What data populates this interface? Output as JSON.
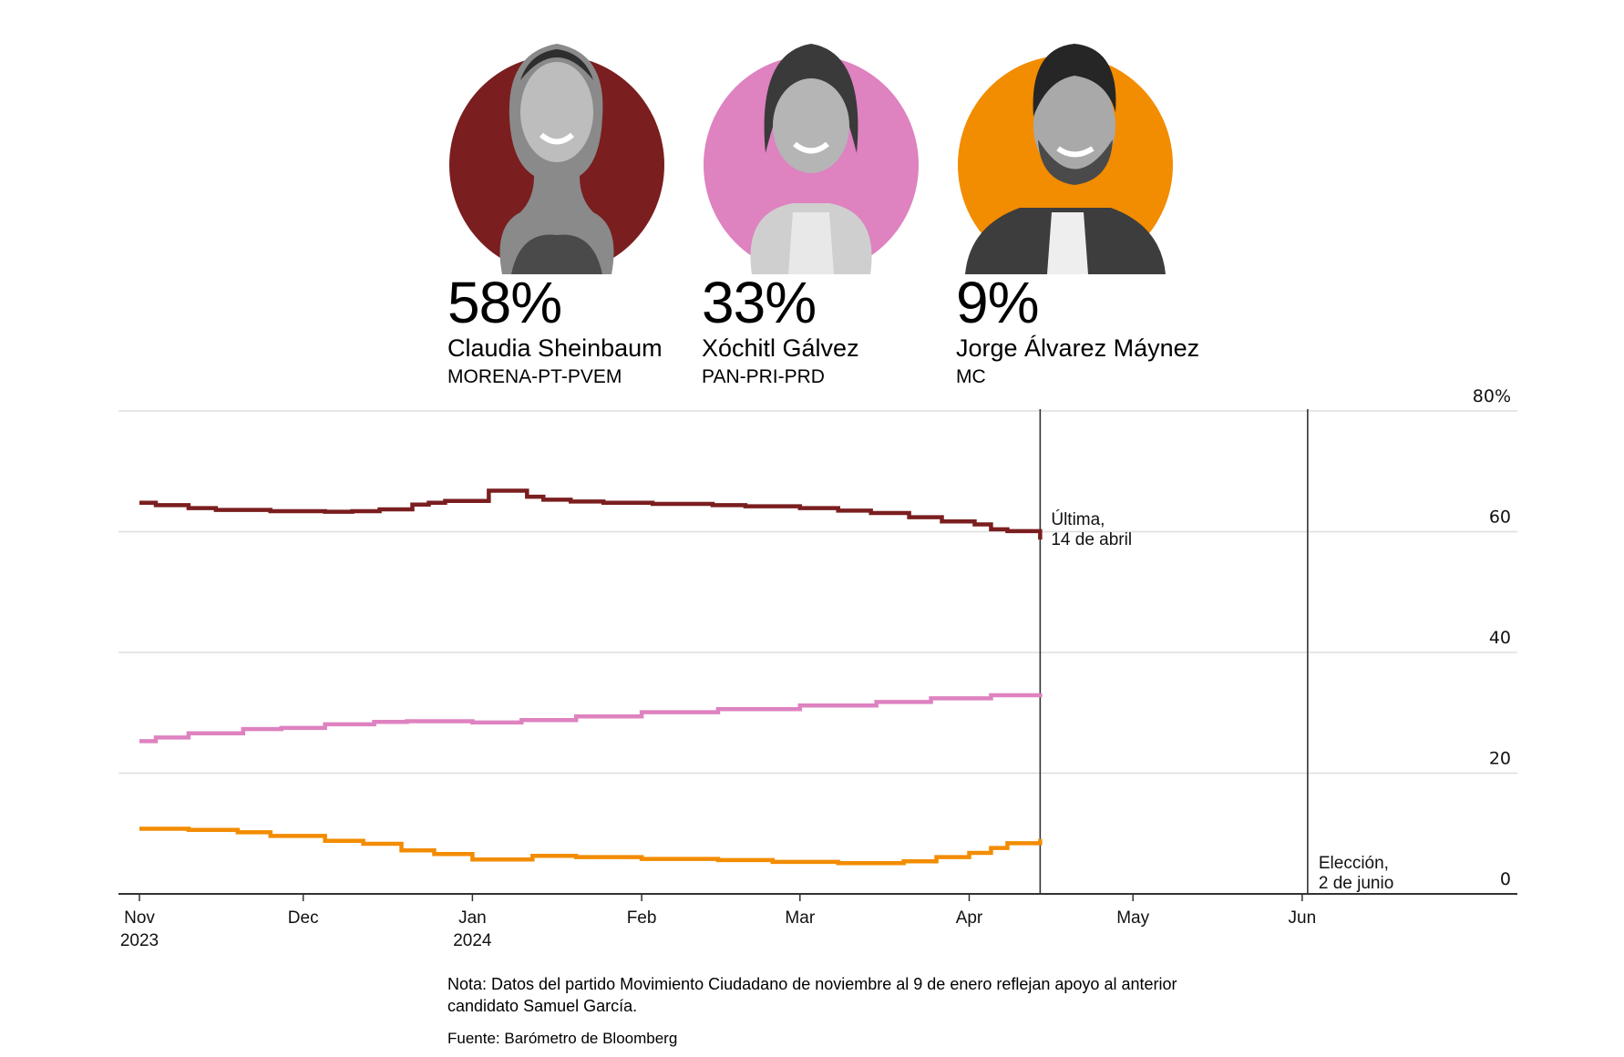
{
  "candidates": [
    {
      "id": "sheinbaum",
      "percent": "58%",
      "name": "Claudia Sheinbaum",
      "party": "MORENA-PT-PVEM",
      "color": "#7a1e1f",
      "photo_icon": "portrait-sheinbaum"
    },
    {
      "id": "galvez",
      "percent": "33%",
      "name": "Xóchitl Gálvez",
      "party": "PAN-PRI-PRD",
      "color": "#de82c0",
      "photo_icon": "portrait-galvez"
    },
    {
      "id": "maynez",
      "percent": "9%",
      "name": "Jorge Álvarez Máynez",
      "party": "MC",
      "color": "#f28c00",
      "photo_icon": "portrait-maynez"
    }
  ],
  "chart_data": {
    "type": "line",
    "title": "",
    "xlabel": "",
    "ylabel": "",
    "ylim": [
      0,
      80
    ],
    "y_ticks": [
      {
        "value": 0,
        "label": "0"
      },
      {
        "value": 20,
        "label": "20"
      },
      {
        "value": 40,
        "label": "40"
      },
      {
        "value": 60,
        "label": "60"
      },
      {
        "value": 80,
        "label": "80%"
      }
    ],
    "x_range": [
      "2023-11-01",
      "2024-06-30"
    ],
    "x_ticks": [
      {
        "date": "2023-11-01",
        "label": "Nov",
        "sublabel": "2023"
      },
      {
        "date": "2023-12-01",
        "label": "Dec",
        "sublabel": ""
      },
      {
        "date": "2024-01-01",
        "label": "Jan",
        "sublabel": "2024"
      },
      {
        "date": "2024-02-01",
        "label": "Feb",
        "sublabel": ""
      },
      {
        "date": "2024-03-01",
        "label": "Mar",
        "sublabel": ""
      },
      {
        "date": "2024-04-01",
        "label": "Apr",
        "sublabel": ""
      },
      {
        "date": "2024-05-01",
        "label": "May",
        "sublabel": ""
      },
      {
        "date": "2024-06-01",
        "label": "Jun",
        "sublabel": ""
      }
    ],
    "grid": true,
    "step": true,
    "series": [
      {
        "name": "Claudia Sheinbaum",
        "color": "#7a1e1f",
        "points": [
          [
            "2023-11-01",
            64.8
          ],
          [
            "2023-11-04",
            64.4
          ],
          [
            "2023-11-10",
            63.9
          ],
          [
            "2023-11-15",
            63.6
          ],
          [
            "2023-11-25",
            63.4
          ],
          [
            "2023-12-05",
            63.3
          ],
          [
            "2023-12-10",
            63.4
          ],
          [
            "2023-12-15",
            63.7
          ],
          [
            "2023-12-21",
            64.5
          ],
          [
            "2023-12-24",
            64.8
          ],
          [
            "2023-12-27",
            65.1
          ],
          [
            "2024-01-04",
            66.8
          ],
          [
            "2024-01-11",
            65.8
          ],
          [
            "2024-01-14",
            65.3
          ],
          [
            "2024-01-19",
            65.0
          ],
          [
            "2024-01-25",
            64.8
          ],
          [
            "2024-02-03",
            64.6
          ],
          [
            "2024-02-14",
            64.4
          ],
          [
            "2024-02-20",
            64.2
          ],
          [
            "2024-03-01",
            63.9
          ],
          [
            "2024-03-08",
            63.5
          ],
          [
            "2024-03-14",
            63.1
          ],
          [
            "2024-03-21",
            62.4
          ],
          [
            "2024-03-27",
            61.7
          ],
          [
            "2024-04-02",
            61.2
          ],
          [
            "2024-04-05",
            60.4
          ],
          [
            "2024-04-08",
            60.1
          ],
          [
            "2024-04-14",
            59.6
          ],
          [
            "2024-04-14",
            58.7
          ]
        ]
      },
      {
        "name": "Xóchitl Gálvez",
        "color": "#de82c0",
        "points": [
          [
            "2023-11-01",
            25.3
          ],
          [
            "2023-11-04",
            25.9
          ],
          [
            "2023-11-10",
            26.6
          ],
          [
            "2023-11-20",
            27.3
          ],
          [
            "2023-11-27",
            27.5
          ],
          [
            "2023-12-05",
            28.1
          ],
          [
            "2023-12-14",
            28.5
          ],
          [
            "2023-12-20",
            28.6
          ],
          [
            "2024-01-01",
            28.4
          ],
          [
            "2024-01-10",
            28.8
          ],
          [
            "2024-01-20",
            29.4
          ],
          [
            "2024-02-01",
            30.1
          ],
          [
            "2024-02-15",
            30.6
          ],
          [
            "2024-03-01",
            31.2
          ],
          [
            "2024-03-15",
            31.8
          ],
          [
            "2024-03-25",
            32.4
          ],
          [
            "2024-04-05",
            32.9
          ],
          [
            "2024-04-14",
            33.2
          ]
        ]
      },
      {
        "name": "Jorge Álvarez Máynez",
        "color": "#f28c00",
        "points": [
          [
            "2023-11-01",
            10.8
          ],
          [
            "2023-11-10",
            10.6
          ],
          [
            "2023-11-19",
            10.2
          ],
          [
            "2023-11-25",
            9.6
          ],
          [
            "2023-12-05",
            8.8
          ],
          [
            "2023-12-12",
            8.3
          ],
          [
            "2023-12-19",
            7.2
          ],
          [
            "2023-12-25",
            6.6
          ],
          [
            "2024-01-01",
            5.7
          ],
          [
            "2024-01-12",
            6.3
          ],
          [
            "2024-01-20",
            6.1
          ],
          [
            "2024-02-01",
            5.8
          ],
          [
            "2024-02-15",
            5.6
          ],
          [
            "2024-02-25",
            5.3
          ],
          [
            "2024-03-08",
            5.1
          ],
          [
            "2024-03-20",
            5.4
          ],
          [
            "2024-03-26",
            6.1
          ],
          [
            "2024-04-01",
            6.8
          ],
          [
            "2024-04-05",
            7.6
          ],
          [
            "2024-04-08",
            8.4
          ],
          [
            "2024-04-14",
            9.1
          ]
        ]
      }
    ],
    "annotations": [
      {
        "date": "2024-04-14",
        "line1": "Última,",
        "line2": "14 de abril"
      },
      {
        "date": "2024-06-02",
        "line1": "Elección,",
        "line2": "2 de junio"
      }
    ],
    "gridline_color": "#dddddd",
    "axis_color": "#333333"
  },
  "footer": {
    "note": "Nota: Datos del partido Movimiento Ciudadano de noviembre al 9 de enero reflejan apoyo al anterior candidato Samuel García.",
    "source": "Fuente: Barómetro de Bloomberg"
  }
}
